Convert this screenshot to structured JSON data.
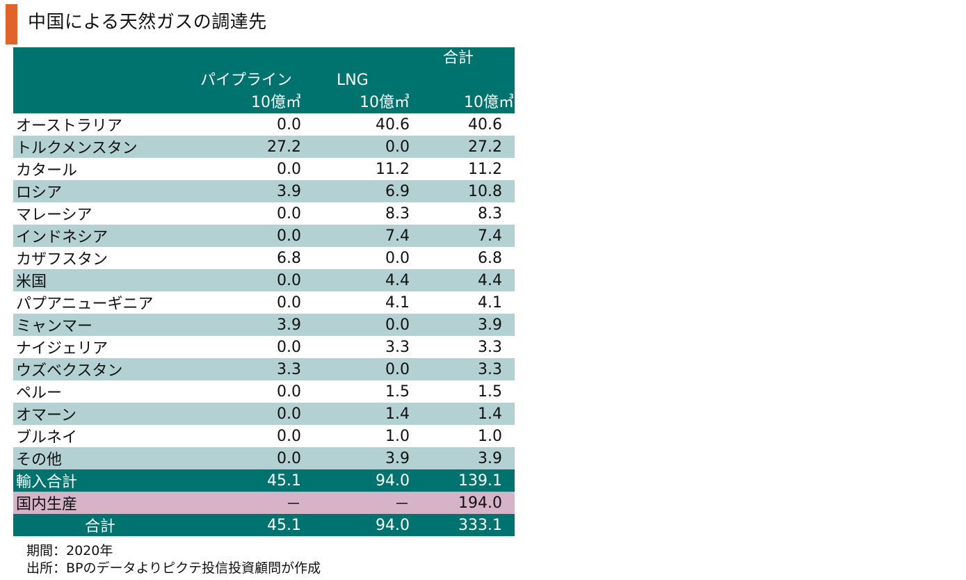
{
  "title": "中国による天然ガスの調達先",
  "colors": {
    "accent_bar": "#e1632a",
    "header_bg": "#00736e",
    "alt_row_bg": "#b3d1d3",
    "domestic_row_bg": "#d7b3c8"
  },
  "header": {
    "total": "合計",
    "pipeline": "パイプライン",
    "lng": "LNG",
    "unit_pipeline": "10億㎥",
    "unit_lng": "10億㎥",
    "unit_total": "10億㎥"
  },
  "notes": {
    "period": "期間：2020年",
    "source": "出所：BPのデータよりピクテ投信投資顧問が作成"
  },
  "chart_data": {
    "type": "table",
    "title": "中国による天然ガスの調達先",
    "columns": [
      "",
      "パイプライン",
      "LNG",
      "合計"
    ],
    "units": [
      "",
      "10億㎥",
      "10億㎥",
      "10億㎥"
    ],
    "rows": [
      {
        "name": "オーストラリア",
        "pipeline": "0.0",
        "lng": "40.6",
        "total": "40.6"
      },
      {
        "name": "トルクメンスタン",
        "pipeline": "27.2",
        "lng": "0.0",
        "total": "27.2"
      },
      {
        "name": "カタール",
        "pipeline": "0.0",
        "lng": "11.2",
        "total": "11.2"
      },
      {
        "name": "ロシア",
        "pipeline": "3.9",
        "lng": "6.9",
        "total": "10.8"
      },
      {
        "name": "マレーシア",
        "pipeline": "0.0",
        "lng": "8.3",
        "total": "8.3"
      },
      {
        "name": "インドネシア",
        "pipeline": "0.0",
        "lng": "7.4",
        "total": "7.4"
      },
      {
        "name": "カザフスタン",
        "pipeline": "6.8",
        "lng": "0.0",
        "total": "6.8"
      },
      {
        "name": "米国",
        "pipeline": "0.0",
        "lng": "4.4",
        "total": "4.4"
      },
      {
        "name": "パプアニューギニア",
        "pipeline": "0.0",
        "lng": "4.1",
        "total": "4.1"
      },
      {
        "name": "ミャンマー",
        "pipeline": "3.9",
        "lng": "0.0",
        "total": "3.9"
      },
      {
        "name": "ナイジェリア",
        "pipeline": "0.0",
        "lng": "3.3",
        "total": "3.3"
      },
      {
        "name": "ウズベクスタン",
        "pipeline": "3.3",
        "lng": "0.0",
        "total": "3.3"
      },
      {
        "name": "ペルー",
        "pipeline": "0.0",
        "lng": "1.5",
        "total": "1.5"
      },
      {
        "name": "オマーン",
        "pipeline": "0.0",
        "lng": "1.4",
        "total": "1.4"
      },
      {
        "name": "ブルネイ",
        "pipeline": "0.0",
        "lng": "1.0",
        "total": "1.0"
      },
      {
        "name": "その他",
        "pipeline": "0.0",
        "lng": "3.9",
        "total": "3.9"
      }
    ],
    "import_total": {
      "name": "輸入合計",
      "pipeline": "45.1",
      "lng": "94.0",
      "total": "139.1"
    },
    "domestic": {
      "name": "国内生産",
      "pipeline": "－",
      "lng": "－",
      "total": "194.0"
    },
    "grand_total": {
      "name": "合計",
      "pipeline": "45.1",
      "lng": "94.0",
      "total": "333.1"
    }
  }
}
